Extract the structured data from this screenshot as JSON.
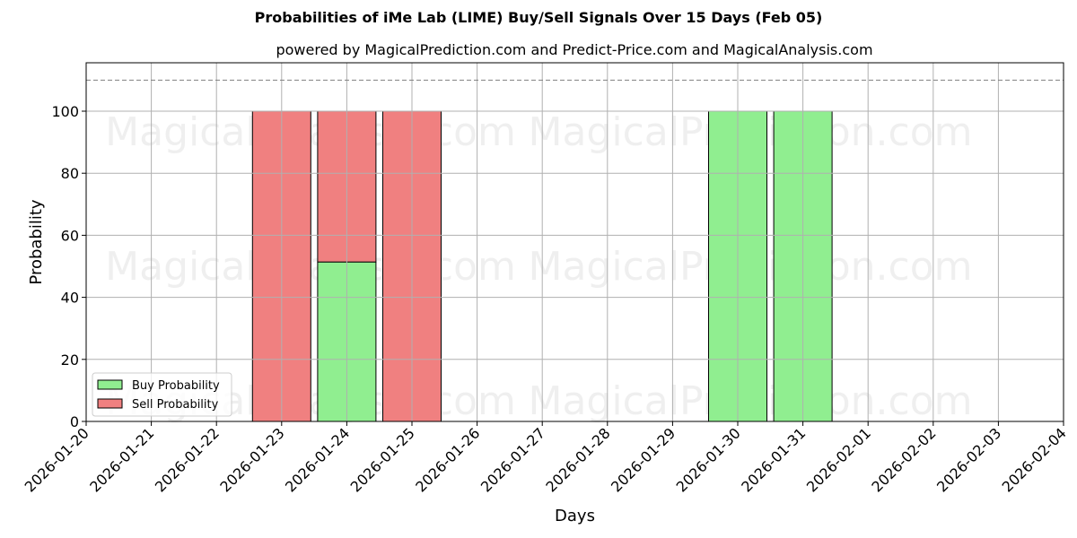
{
  "chart_data": {
    "type": "bar",
    "stacked": true,
    "title": "Probabilities of iMe Lab (LIME) Buy/Sell Signals Over 15 Days (Feb 05)",
    "subtitle": "powered by MagicalPrediction.com and Predict-Price.com and MagicalAnalysis.com",
    "xlabel": "Days",
    "ylabel": "Probability",
    "ylim": [
      0,
      115
    ],
    "yticks": [
      0,
      20,
      40,
      60,
      80,
      100
    ],
    "reference_line": {
      "y": 110,
      "style": "dashed",
      "color": "#808080"
    },
    "grid": true,
    "legend_position": "lower left",
    "x_ticks": [
      "2026-01-20",
      "2026-01-21",
      "2026-01-22",
      "2026-01-23",
      "2026-01-24",
      "2026-01-25",
      "2026-01-26",
      "2026-01-27",
      "2026-01-28",
      "2026-01-29",
      "2026-01-30",
      "2026-01-31",
      "2026-02-01",
      "2026-02-02",
      "2026-02-03",
      "2026-02-04"
    ],
    "categories": [
      "2026-01-23",
      "2026-01-24",
      "2026-01-25",
      "2026-01-30",
      "2026-01-31"
    ],
    "series": [
      {
        "name": "Buy Probability",
        "color": "#90ee90",
        "values": [
          0,
          51.4,
          0,
          100,
          100
        ]
      },
      {
        "name": "Sell Probability",
        "color": "#f08080",
        "values": [
          100,
          48.6,
          100,
          0,
          0
        ]
      }
    ],
    "watermarks": [
      "MagicalAnalysis.com",
      "MagicalPrediction.com"
    ]
  }
}
